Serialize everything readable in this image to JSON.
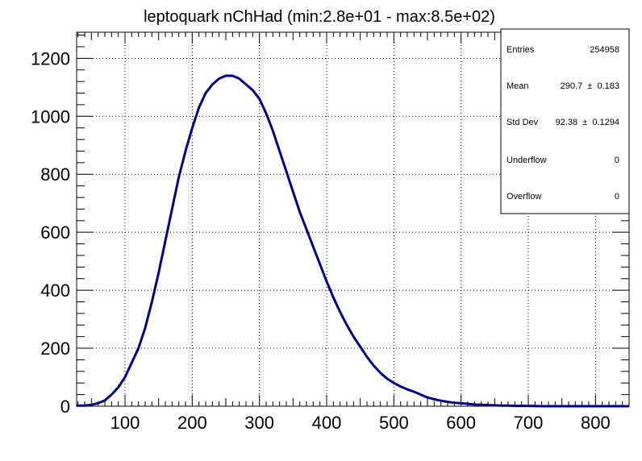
{
  "chart_data": {
    "type": "histogram",
    "title": "leptoquark nChHad (min:2.8e+01 - max:8.5e+02)",
    "xlabel": "",
    "ylabel": "",
    "xlim": [
      28,
      850
    ],
    "ylim": [
      0,
      1290
    ],
    "x_ticks": [
      100,
      200,
      300,
      400,
      500,
      600,
      700,
      800
    ],
    "y_ticks": [
      0,
      200,
      400,
      600,
      800,
      1000,
      1200
    ],
    "grid": true,
    "line_color": "#000080",
    "series": [
      {
        "x": [
          40,
          50,
          60,
          70,
          80,
          90,
          100,
          110,
          120,
          130,
          140,
          150,
          160,
          170,
          180,
          190,
          200,
          210,
          220,
          230,
          240,
          250,
          260,
          270,
          280,
          290,
          300,
          310,
          320,
          330,
          340,
          350,
          360,
          370,
          380,
          390,
          400,
          410,
          420,
          430,
          440,
          450,
          460,
          470,
          480,
          490,
          500,
          510,
          520,
          530,
          540,
          550,
          560,
          570,
          580,
          590,
          600,
          610,
          620,
          630,
          640,
          650,
          660,
          670,
          680,
          690,
          700,
          720,
          740,
          760,
          780,
          800,
          820,
          850
        ],
        "values": [
          2,
          5,
          10,
          20,
          40,
          65,
          100,
          150,
          200,
          270,
          360,
          460,
          570,
          680,
          790,
          880,
          960,
          1030,
          1080,
          1110,
          1130,
          1140,
          1140,
          1130,
          1110,
          1090,
          1060,
          1010,
          950,
          880,
          810,
          740,
          670,
          610,
          550,
          490,
          430,
          375,
          325,
          280,
          240,
          205,
          170,
          140,
          115,
          95,
          80,
          68,
          58,
          50,
          40,
          30,
          24,
          19,
          15,
          12,
          10,
          8,
          6,
          5,
          4,
          3,
          2,
          2,
          1,
          1,
          1,
          0,
          0,
          0,
          0,
          0,
          0,
          0
        ]
      }
    ]
  },
  "stats": {
    "entries_label": "Entries",
    "entries_value": "254958",
    "mean_label": "Mean",
    "mean_value": "290.7  ±  0.183",
    "stddev_label": "Std Dev",
    "stddev_value": "92.38  ±  0.1294",
    "underflow_label": "Underflow",
    "underflow_value": "0",
    "overflow_label": "Overflow",
    "overflow_value": "0"
  }
}
